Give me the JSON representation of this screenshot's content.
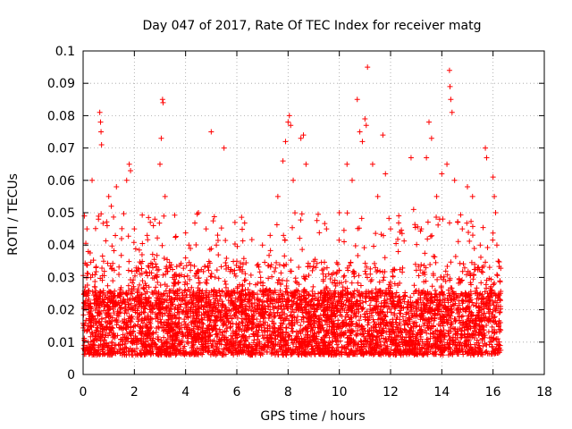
{
  "chart_data": {
    "type": "scatter",
    "title": "Day 047 of 2017, Rate Of TEC Index for receiver matg",
    "xlabel": "GPS time / hours",
    "ylabel": "ROTI / TECUs",
    "xlim": [
      0,
      18
    ],
    "ylim": [
      0,
      0.1
    ],
    "x_ticks": [
      0,
      2,
      4,
      6,
      8,
      10,
      12,
      14,
      16,
      18
    ],
    "y_ticks": [
      0,
      0.01,
      0.02,
      0.03,
      0.04,
      0.05,
      0.06,
      0.07,
      0.08,
      0.09,
      0.1
    ],
    "x_tick_labels": [
      "0",
      "2",
      "4",
      "6",
      "8",
      "10",
      "12",
      "14",
      "16",
      "18"
    ],
    "y_tick_labels": [
      "0",
      "0.01",
      "0.02",
      "0.03",
      "0.04",
      "0.05",
      "0.06",
      "0.07",
      "0.08",
      "0.09",
      "0.1"
    ],
    "grid": true,
    "marker": "+",
    "color": "#ff0000",
    "series": [
      {
        "name": "ROTI",
        "data_range_hours": [
          0,
          16.3
        ],
        "typical_range": [
          0.005,
          0.025
        ],
        "points": [
          [
            0.05,
            0.049
          ],
          [
            0.15,
            0.045
          ],
          [
            0.2,
            0.038
          ],
          [
            0.35,
            0.06
          ],
          [
            0.5,
            0.033
          ],
          [
            0.6,
            0.048
          ],
          [
            0.65,
            0.081
          ],
          [
            0.68,
            0.078
          ],
          [
            0.7,
            0.075
          ],
          [
            0.72,
            0.071
          ],
          [
            0.8,
            0.035
          ],
          [
            1.0,
            0.055
          ],
          [
            1.1,
            0.052
          ],
          [
            1.3,
            0.058
          ],
          [
            1.5,
            0.042
          ],
          [
            1.7,
            0.06
          ],
          [
            1.8,
            0.065
          ],
          [
            1.85,
            0.063
          ],
          [
            2.0,
            0.045
          ],
          [
            2.3,
            0.037
          ],
          [
            2.5,
            0.043
          ],
          [
            2.8,
            0.048
          ],
          [
            3.0,
            0.065
          ],
          [
            3.05,
            0.073
          ],
          [
            3.1,
            0.085
          ],
          [
            3.12,
            0.084
          ],
          [
            3.2,
            0.055
          ],
          [
            3.5,
            0.03
          ],
          [
            4.0,
            0.036
          ],
          [
            4.5,
            0.05
          ],
          [
            4.8,
            0.045
          ],
          [
            5.0,
            0.075
          ],
          [
            5.5,
            0.07
          ],
          [
            5.2,
            0.04
          ],
          [
            6.0,
            0.035
          ],
          [
            6.5,
            0.028
          ],
          [
            7.0,
            0.04
          ],
          [
            7.3,
            0.043
          ],
          [
            7.6,
            0.055
          ],
          [
            7.8,
            0.066
          ],
          [
            7.9,
            0.072
          ],
          [
            8.0,
            0.078
          ],
          [
            8.05,
            0.08
          ],
          [
            8.1,
            0.077
          ],
          [
            8.2,
            0.06
          ],
          [
            8.5,
            0.073
          ],
          [
            8.6,
            0.074
          ],
          [
            8.7,
            0.065
          ],
          [
            9.0,
            0.035
          ],
          [
            9.5,
            0.045
          ],
          [
            10.0,
            0.05
          ],
          [
            10.3,
            0.065
          ],
          [
            10.5,
            0.06
          ],
          [
            10.7,
            0.085
          ],
          [
            10.8,
            0.075
          ],
          [
            10.9,
            0.072
          ],
          [
            11.0,
            0.079
          ],
          [
            11.05,
            0.077
          ],
          [
            11.1,
            0.095
          ],
          [
            11.3,
            0.065
          ],
          [
            11.5,
            0.055
          ],
          [
            11.7,
            0.074
          ],
          [
            11.8,
            0.062
          ],
          [
            12.0,
            0.045
          ],
          [
            12.3,
            0.038
          ],
          [
            12.8,
            0.067
          ],
          [
            12.9,
            0.051
          ],
          [
            13.2,
            0.045
          ],
          [
            13.4,
            0.067
          ],
          [
            13.5,
            0.078
          ],
          [
            13.6,
            0.073
          ],
          [
            13.8,
            0.055
          ],
          [
            14.0,
            0.062
          ],
          [
            14.2,
            0.065
          ],
          [
            14.3,
            0.094
          ],
          [
            14.32,
            0.089
          ],
          [
            14.35,
            0.085
          ],
          [
            14.4,
            0.081
          ],
          [
            14.5,
            0.06
          ],
          [
            14.8,
            0.045
          ],
          [
            15.0,
            0.058
          ],
          [
            15.2,
            0.055
          ],
          [
            15.5,
            0.04
          ],
          [
            15.7,
            0.07
          ],
          [
            15.75,
            0.067
          ],
          [
            16.0,
            0.061
          ],
          [
            16.05,
            0.055
          ],
          [
            16.1,
            0.05
          ],
          [
            16.15,
            0.04
          ],
          [
            16.2,
            0.035
          ]
        ]
      }
    ]
  }
}
